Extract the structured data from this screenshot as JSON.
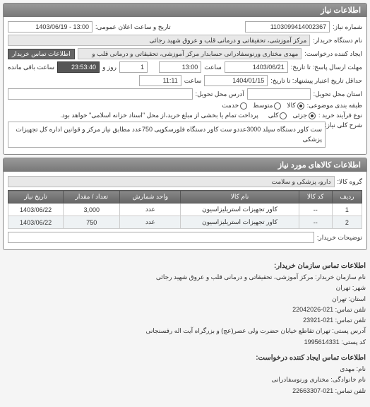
{
  "panel": {
    "title": "اطلاعات نیاز"
  },
  "header": {
    "request_number_label": "شماره نیاز:",
    "request_number": "1103099414002367",
    "announce_label": "تاریخ و ساعت اعلان عمومی:",
    "announce_value": "13:00 - 1403/06/19",
    "buyer_name_label": "نام دستگاه خریدار:",
    "buyer_name": "مرکز آموزشی، تحقیقاتی و درمانی قلب و عروق شهید رجائی",
    "requester_label": "ایجاد کننده درخواست:",
    "requester_value": "مهدی مختاری ورنوسفادرانی حسابدار مرکز آموزشی، تحقیقاتی و درمانی قلب و",
    "contact_btn": "اطلاعات تماس خریدار",
    "deadline_send_label": "مهلت ارسال پاسخ: تا تاریخ:",
    "deadline_send_date": "1403/06/21",
    "deadline_send_time_label": "ساعت",
    "deadline_send_time": "13:00",
    "remaining_days_val": "1",
    "remaining_days_label": "روز و",
    "remaining_time": "23:53:40",
    "remaining_suffix": "ساعت باقی مانده",
    "validity_label": "حداقل تاریخ اعتبار پیشنهاد: تا تاریخ:",
    "validity_date": "1404/01/15",
    "validity_time_label": "ساعت",
    "validity_time": "11:11",
    "delivery_addr_label": "آدرس محل تحویل:",
    "delivery_addr_value": "",
    "state_label": "استان محل تحویل:",
    "state_value": "",
    "pkg_label": "طبقه بندی موضوعی:",
    "pkg_options": {
      "all": "کالا",
      "mid": "متوسط",
      "khd": "خدمت"
    },
    "pkg_checked": "all",
    "approval_label": "نوع فرآیند خرید :",
    "approval_options": {
      "partial": "جزئی",
      "full": "کلی"
    },
    "approval_checked": "partial",
    "note": "پرداخت تمام یا بخشی از مبلغ خرید،از محل \"اسناد خزانه اسلامی\" خواهد بود.",
    "desc_label": "شرح کلی نیاز:",
    "desc_text": "ست کاور دستگاه سیلد 3000عددو ست کاور دستگاه فلورسکوپی 750عدد مطابق نیاز مرکز و قوانین اداره کل تجهیزات پزشکی"
  },
  "goods": {
    "title": "اطلاعات کالاهای مورد نیاز",
    "group_label": "گروه کالا:",
    "group_value": "دارو، پزشکی و سلامت",
    "columns": [
      "ردیف",
      "کد کالا",
      "نام کالا",
      "واحد شمارش",
      "تعداد / مقدار",
      "تاریخ نیاز"
    ],
    "rows": [
      [
        "1",
        "--",
        "کاور تجهیزات استریلیزاسیون",
        "عدد",
        "3,000",
        "1403/06/22"
      ],
      [
        "2",
        "--",
        "کاور تجهیزات استریلیزاسیون",
        "عدد",
        "750",
        "1403/06/22"
      ]
    ],
    "buyer_notes_label": "توضیحات خریدار:",
    "buyer_notes_value": ""
  },
  "contact": {
    "section1_title": "اطلاعات تماس سازمان خریدار:",
    "org_name_label": "نام سازمان خریدار:",
    "org_name": "مرکز آموزشی، تحقیقاتی و درمانی قلب و عروق شهید رجائی",
    "city_label": "شهر:",
    "city": "تهران",
    "province_label": "استان:",
    "province": "تهران",
    "phone_label": "تلفن تماس:",
    "phone": "021-22042026",
    "fax_label": "تلفن تماس:",
    "fax": "021-23921",
    "postal_addr_label": "آدرس پستی:",
    "postal_addr": "تهران تقاطع خیابان حضرت ولی عصر(عج) و بزرگراه آیت اله رفسنجانی",
    "postal_code_label": "کد پستی:",
    "postal_code": "1995614331",
    "section2_title": "اطلاعات تماس ایجاد کننده درخواست:",
    "fname_label": "نام:",
    "fname": "مهدی",
    "lname_label": "نام خانوادگی:",
    "lname": "مختاری ورنوسفادرانی",
    "req_phone_label": "تلفن تماس:",
    "req_phone": "021-22663307"
  }
}
